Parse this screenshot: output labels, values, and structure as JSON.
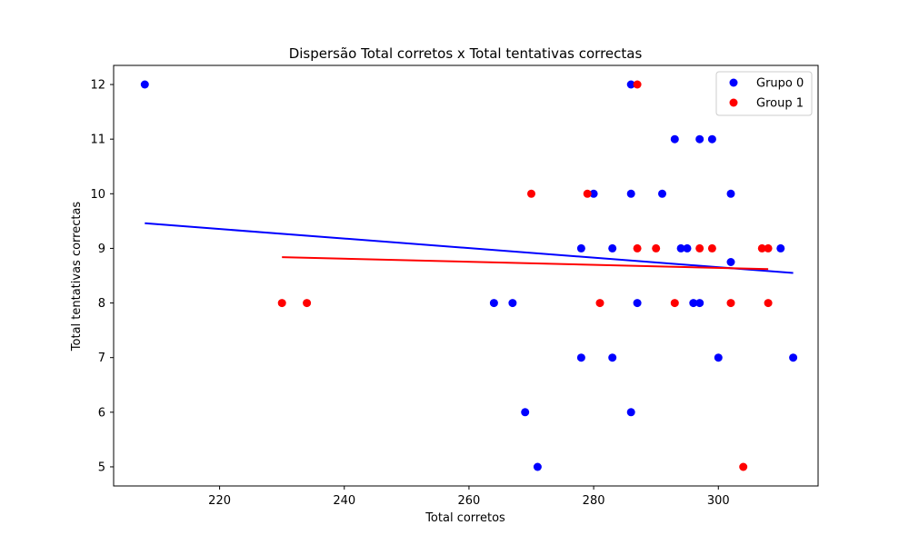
{
  "chart_data": {
    "type": "scatter",
    "title": "Dispersão Total corretos x Total tentativas correctas",
    "xlabel": "Total corretos",
    "ylabel": "Total tentativas correctas",
    "xlim": [
      203,
      316
    ],
    "ylim": [
      4.65,
      12.35
    ],
    "xticks": [
      220,
      240,
      260,
      280,
      300
    ],
    "yticks": [
      5,
      6,
      7,
      8,
      9,
      10,
      11,
      12
    ],
    "grid": false,
    "legend_position": "top-right",
    "series": [
      {
        "name": "Grupo 0",
        "color": "#0000ff",
        "points": [
          [
            208,
            12
          ],
          [
            286,
            12
          ],
          [
            293,
            11
          ],
          [
            297,
            11
          ],
          [
            299,
            11
          ],
          [
            280,
            10
          ],
          [
            286,
            10
          ],
          [
            291,
            10
          ],
          [
            302,
            10
          ],
          [
            278,
            9
          ],
          [
            283,
            9
          ],
          [
            294,
            9
          ],
          [
            295,
            9
          ],
          [
            310,
            9
          ],
          [
            302,
            8.75
          ],
          [
            264,
            8
          ],
          [
            267,
            8
          ],
          [
            287,
            8
          ],
          [
            296,
            8
          ],
          [
            297,
            8
          ],
          [
            278,
            7
          ],
          [
            283,
            7
          ],
          [
            300,
            7
          ],
          [
            312,
            7
          ],
          [
            269,
            6
          ],
          [
            286,
            6
          ],
          [
            271,
            5
          ]
        ],
        "trend": [
          [
            208,
            9.46
          ],
          [
            312,
            8.55
          ]
        ]
      },
      {
        "name": "Group 1",
        "color": "#ff0000",
        "points": [
          [
            287,
            12
          ],
          [
            270,
            10
          ],
          [
            279,
            10
          ],
          [
            287,
            9
          ],
          [
            290,
            9
          ],
          [
            297,
            9
          ],
          [
            299,
            9
          ],
          [
            307,
            9
          ],
          [
            308,
            9
          ],
          [
            230,
            8
          ],
          [
            234,
            8
          ],
          [
            281,
            8
          ],
          [
            293,
            8
          ],
          [
            302,
            8
          ],
          [
            308,
            8
          ],
          [
            304,
            5
          ]
        ],
        "trend": [
          [
            230,
            8.84
          ],
          [
            308,
            8.62
          ]
        ]
      }
    ]
  }
}
